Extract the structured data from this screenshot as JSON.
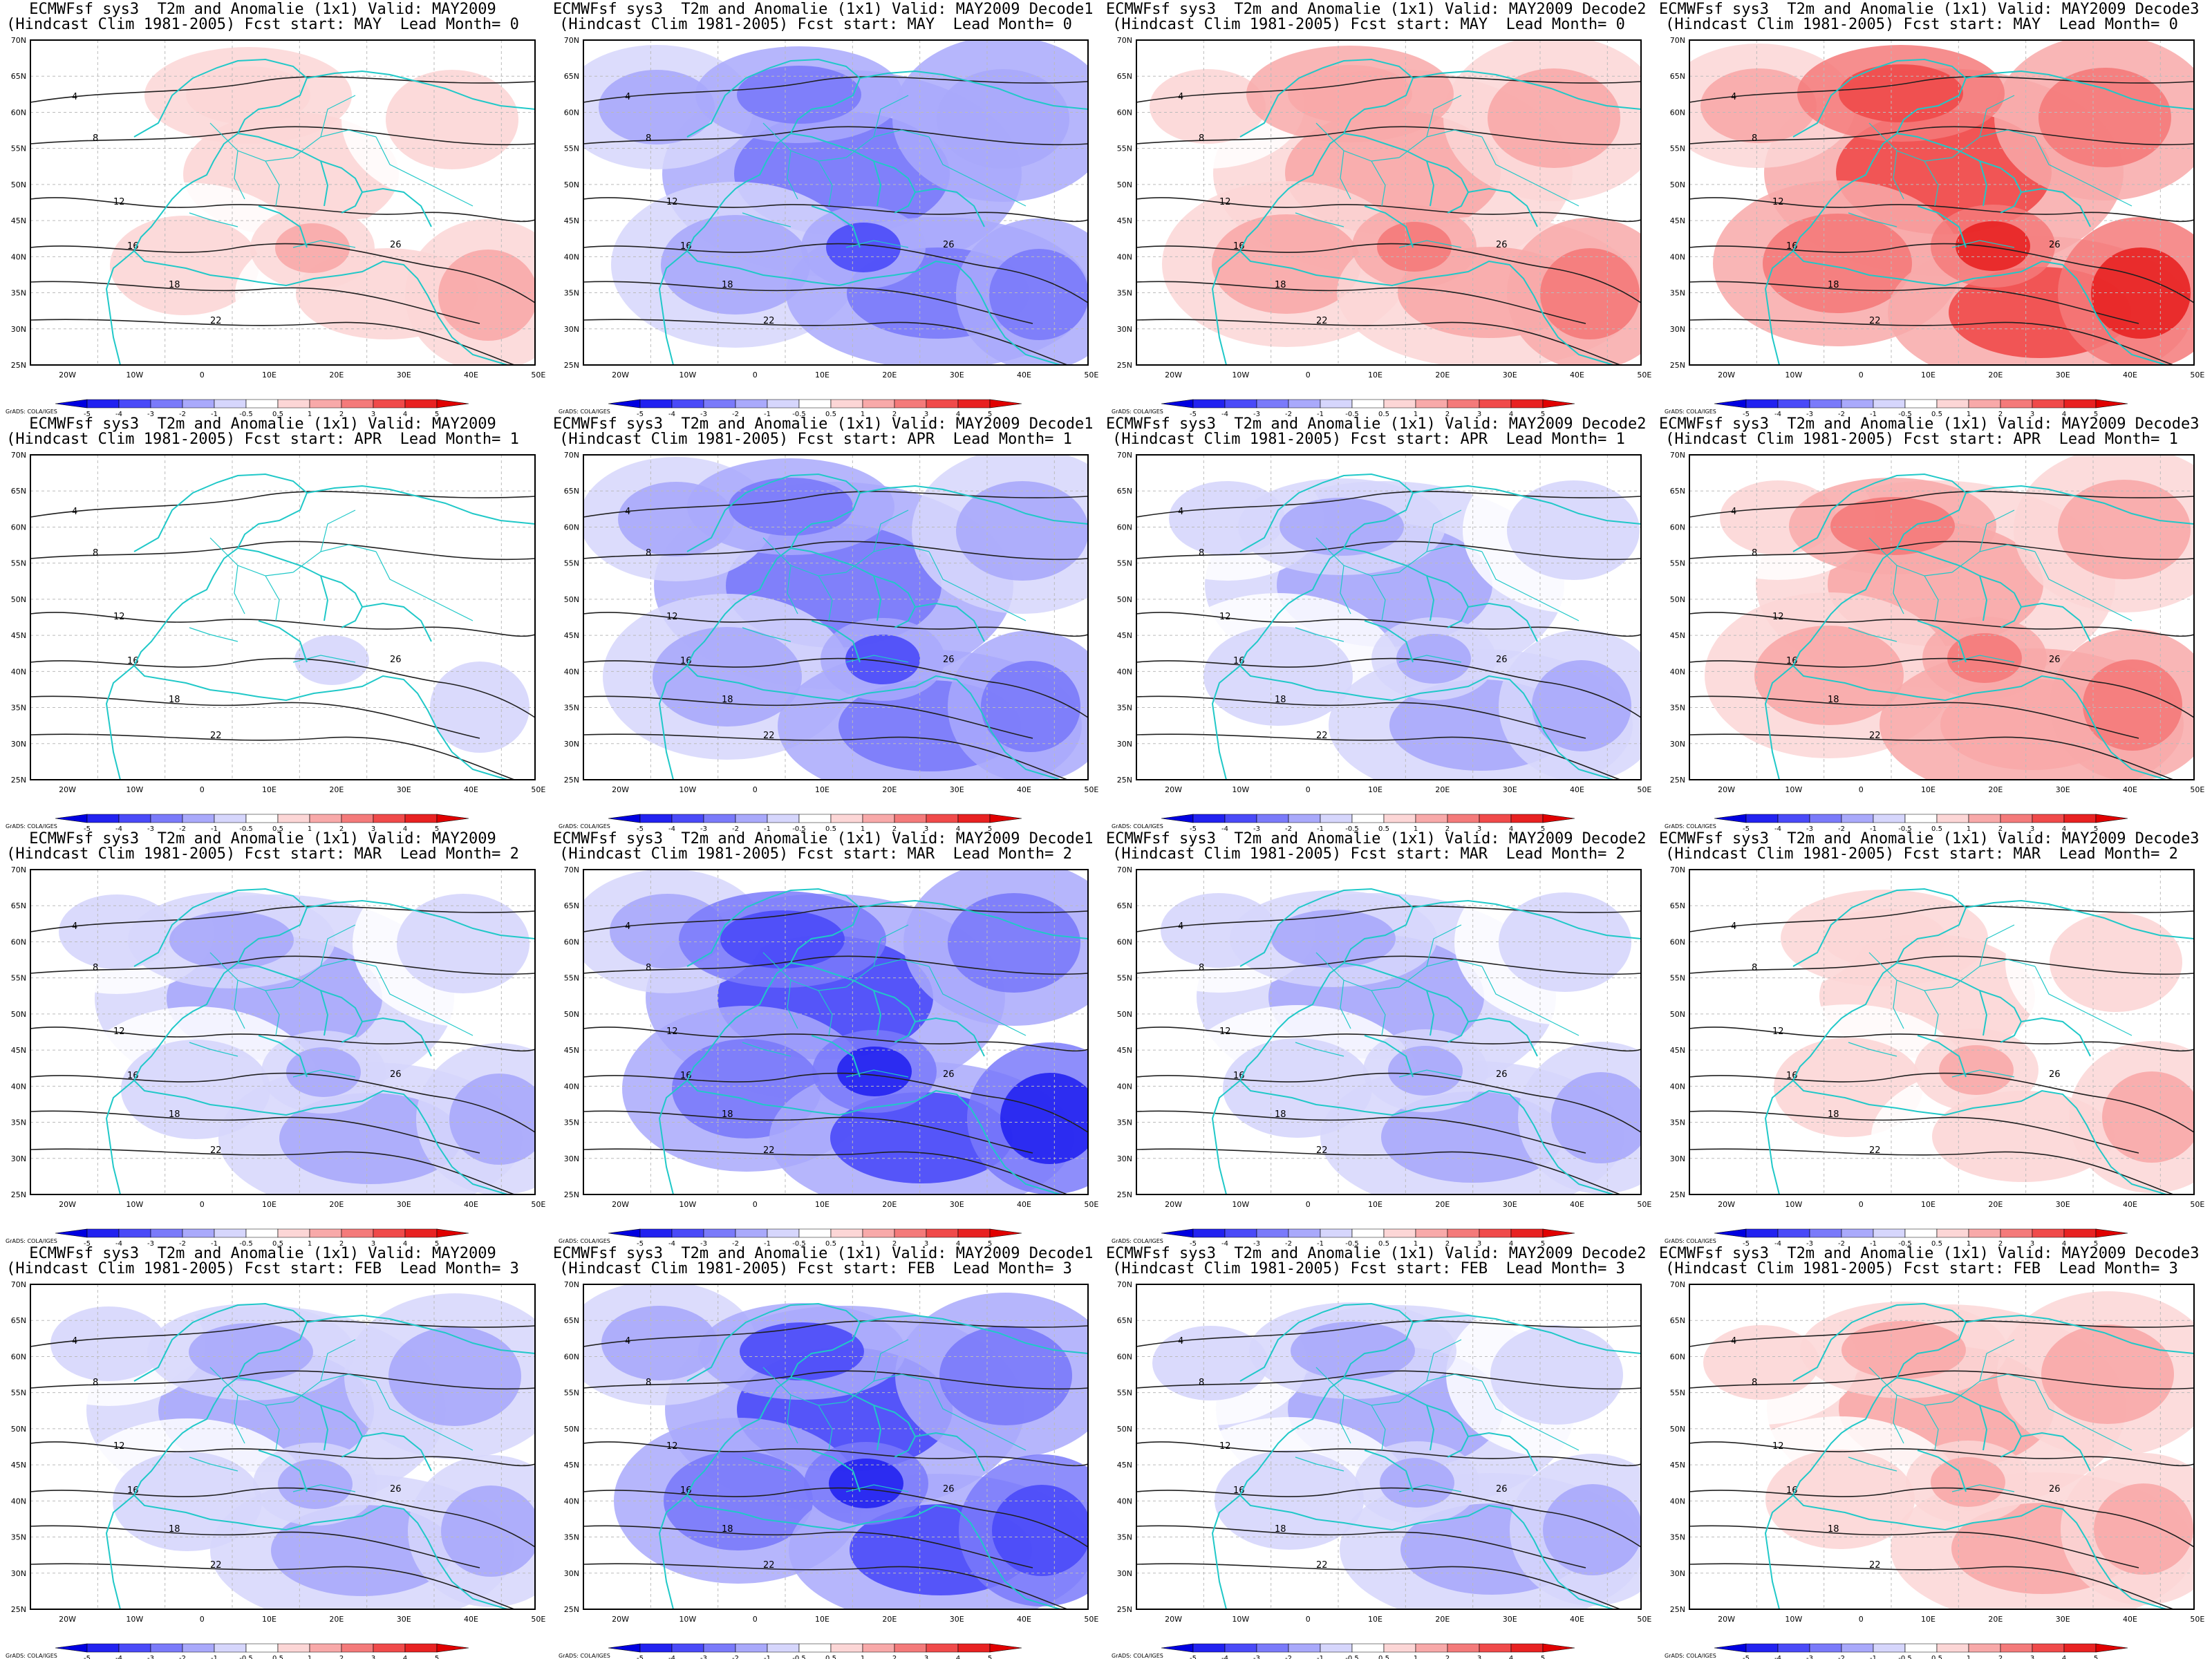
{
  "title_prefix": "ECMWFsf sys3  T2m and Anomalie (1x1) Valid: ",
  "clim_label": "(Hindcast Clim 1981-2005) Fcst start: ",
  "lead_label": "Lead Month= ",
  "valid_periods": [
    "MAY2009",
    "MAY2009 Decode1",
    "MAY2009 Decode2",
    "MAY2009 Decode3"
  ],
  "forecast_starts": [
    {
      "start": "MAY",
      "lead": "0"
    },
    {
      "start": "APR",
      "lead": "1"
    },
    {
      "start": "MAR",
      "lead": "2"
    },
    {
      "start": "FEB",
      "lead": "3"
    }
  ],
  "map": {
    "lon_ticks": [
      "20W",
      "10W",
      "0",
      "10E",
      "20E",
      "30E",
      "40E",
      "50E"
    ],
    "lat_ticks": [
      "70N",
      "65N",
      "60N",
      "55N",
      "50N",
      "45N",
      "40N",
      "35N",
      "30N",
      "25N"
    ],
    "contour_labels": [
      "4",
      "8",
      "12",
      "16",
      "18",
      "22",
      "26"
    ]
  },
  "colorbar": {
    "ticks": [
      "-5",
      "-4",
      "-3",
      "-2",
      "-1",
      "-0.5",
      "0.5",
      "1",
      "2",
      "3",
      "4",
      "5"
    ],
    "colors": [
      "#0000e0",
      "#2222f0",
      "#4a4af8",
      "#7a7afa",
      "#a9a9fb",
      "#d6d6fc",
      "#ffffff",
      "#fcd6d6",
      "#f8a9a9",
      "#f47a7a",
      "#f04a4a",
      "#e82222",
      "#e00000"
    ],
    "credit": "GrADS: COLA/IGES"
  },
  "anomaly_levels": [
    [
      0.8,
      -2.2,
      1.6,
      3.2
    ],
    [
      -0.4,
      -2.0,
      -1.0,
      1.8
    ],
    [
      -1.0,
      -3.2,
      -1.0,
      0.8
    ],
    [
      -1.2,
      -3.0,
      -1.0,
      1.2
    ]
  ],
  "colors": {
    "land_outline": "#20c8c8",
    "contour": "#202020",
    "frame": "#000000"
  }
}
